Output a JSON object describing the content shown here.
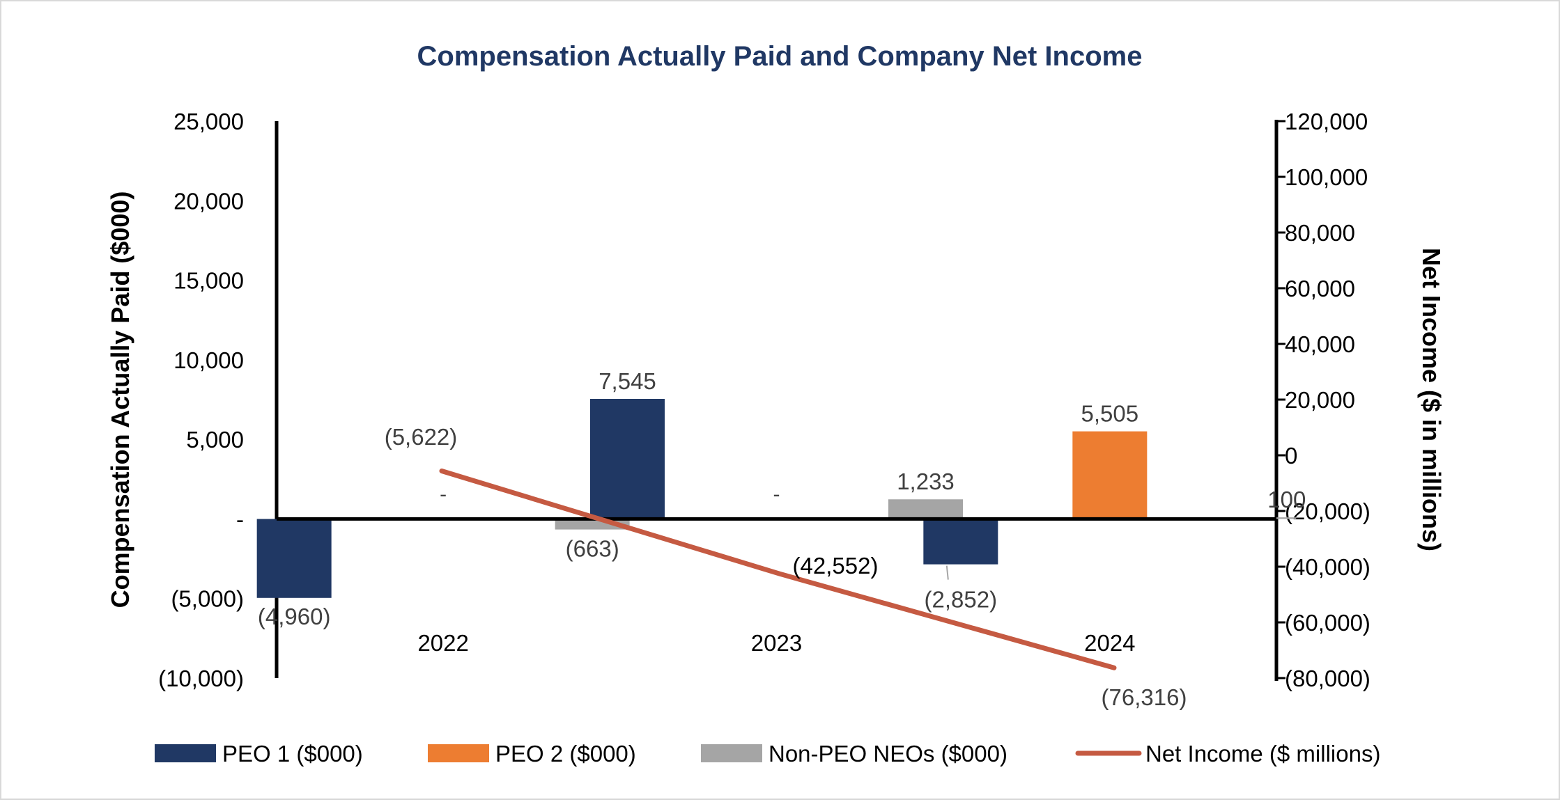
{
  "chart_data": {
    "type": "bar",
    "title": "Compensation Actually Paid and Company Net Income",
    "categories": [
      "2022",
      "2023",
      "2024"
    ],
    "ylabel": "Compensation Actually Paid ($000)",
    "y2label": "Net Income ($ in millions)",
    "ylim": [
      -10000,
      25000
    ],
    "yticks": [
      25000,
      20000,
      15000,
      10000,
      5000,
      0,
      -5000,
      -10000
    ],
    "ytick_labels": [
      "25,000",
      "20,000",
      "15,000",
      "10,000",
      "5,000",
      "-",
      "(5,000)",
      "(10,000)"
    ],
    "y2lim": [
      -80000,
      120000
    ],
    "y2ticks": [
      120000,
      100000,
      80000,
      60000,
      40000,
      20000,
      0,
      -20000,
      -40000,
      -60000,
      -80000
    ],
    "y2tick_labels": [
      "120,000",
      "100,000",
      "80,000",
      "60,000",
      "40,000",
      "20,000",
      "0",
      "(20,000)",
      "(40,000)",
      "(60,000)",
      "(80,000)"
    ],
    "series": [
      {
        "name": "PEO 1 ($000)",
        "kind": "bar",
        "axis": "left",
        "color": "#203864",
        "values": [
          -4960,
          7545,
          -2852
        ],
        "labels": [
          "(4,960)",
          "7,545",
          "(2,852)"
        ]
      },
      {
        "name": "PEO 2 ($000)",
        "kind": "bar",
        "axis": "left",
        "color": "#ed7d31",
        "values": [
          0,
          0,
          5505
        ],
        "labels": [
          "-",
          "-",
          "5,505"
        ]
      },
      {
        "name": "Non-PEO NEOs ($000)",
        "kind": "bar",
        "axis": "left",
        "color": "#a5a5a5",
        "values": [
          -663,
          1233,
          100
        ],
        "labels": [
          "(663)",
          "1,233",
          "100"
        ]
      },
      {
        "name": "Net Income ($ millions)",
        "kind": "line",
        "axis": "right",
        "color": "#c55a42",
        "values": [
          -5622,
          -42552,
          -76316
        ],
        "labels": [
          "(5,622)",
          "(42,552)",
          "(76,316)"
        ]
      }
    ],
    "legend": "bottom"
  }
}
